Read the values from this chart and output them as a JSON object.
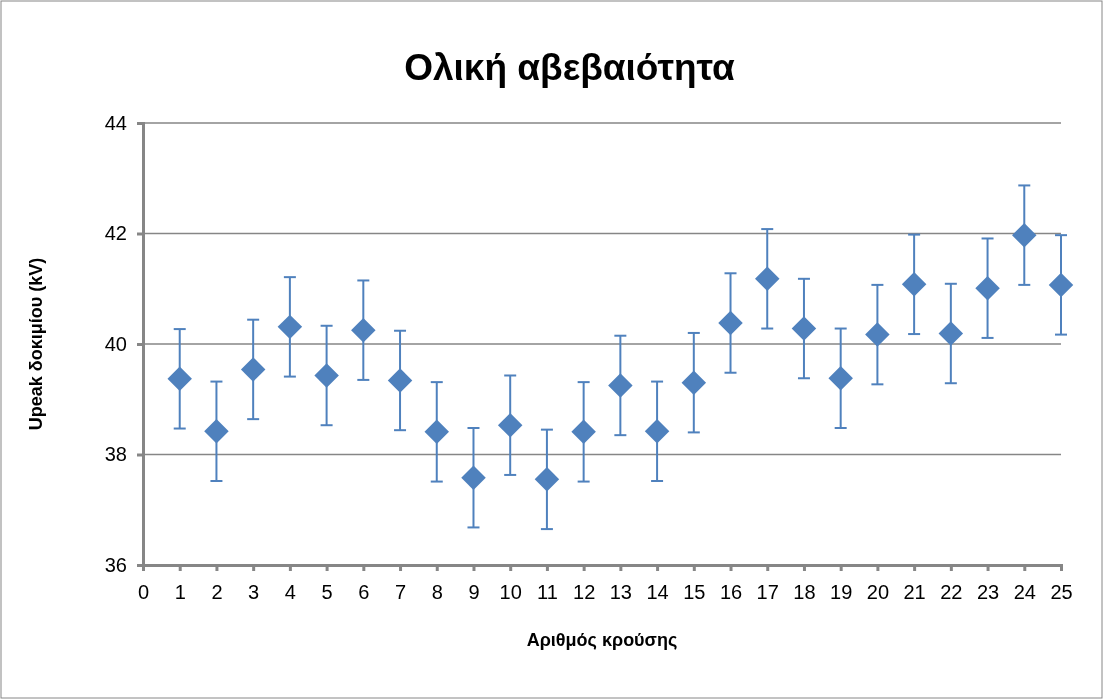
{
  "chart_data": {
    "type": "scatter",
    "title": "Ολική αβεβαιότητα",
    "xlabel": "Αριθμός κρούσης",
    "ylabel": "Upeak δοκιμίου (kV)",
    "x": [
      1,
      2,
      3,
      4,
      5,
      6,
      7,
      8,
      9,
      10,
      11,
      12,
      13,
      14,
      15,
      16,
      17,
      18,
      19,
      20,
      21,
      22,
      23,
      24,
      25
    ],
    "series": [
      {
        "color": "#4f81bd",
        "values": [
          39.37,
          38.42,
          39.54,
          40.31,
          39.43,
          40.25,
          39.34,
          38.41,
          37.58,
          38.53,
          37.55,
          38.41,
          39.25,
          38.42,
          39.3,
          40.38,
          41.18,
          40.28,
          39.38,
          40.17,
          41.08,
          40.19,
          41.01,
          41.97,
          41.07
        ],
        "errors": [
          0.9,
          0.9,
          0.9,
          0.9,
          0.9,
          0.9,
          0.9,
          0.9,
          0.9,
          0.9,
          0.9,
          0.9,
          0.9,
          0.9,
          0.9,
          0.9,
          0.9,
          0.9,
          0.9,
          0.9,
          0.9,
          0.9,
          0.9,
          0.9,
          0.9
        ]
      }
    ],
    "xlim": [
      0,
      25
    ],
    "xticks": [
      0,
      1,
      2,
      3,
      4,
      5,
      6,
      7,
      8,
      9,
      10,
      11,
      12,
      13,
      14,
      15,
      16,
      17,
      18,
      19,
      20,
      21,
      22,
      23,
      24,
      25
    ],
    "ylim": [
      36,
      44
    ],
    "yticks": [
      36,
      38,
      40,
      42,
      44
    ],
    "grid": "y",
    "marker": "diamond"
  }
}
